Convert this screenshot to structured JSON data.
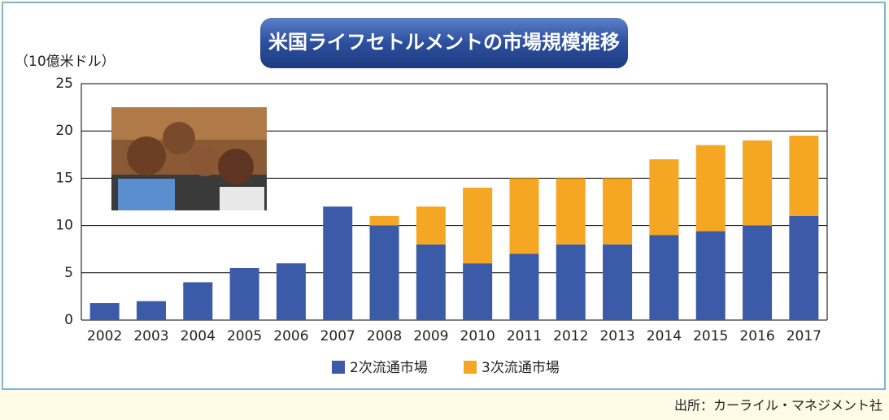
{
  "chart_data": {
    "type": "stacked_bar",
    "title": "米国ライフセトルメントの市場規模推移",
    "y_label": "（10億米ドル）",
    "source": "出所：カーライル・マネジメント社",
    "categories": [
      "2002",
      "2003",
      "2004",
      "2005",
      "2006",
      "2007",
      "2008",
      "2009",
      "2010",
      "2011",
      "2012",
      "2013",
      "2014",
      "2015",
      "2016",
      "2017"
    ],
    "series": [
      {
        "name": "2次流通市場",
        "color": "#3b5aa8",
        "values": [
          1.8,
          2,
          4,
          5.5,
          6,
          12,
          10,
          8,
          6,
          7,
          8,
          8,
          9,
          9.4,
          10,
          11
        ]
      },
      {
        "name": "3次流通市場",
        "color": "#f5a623",
        "values": [
          0,
          0,
          0,
          0,
          0,
          0,
          1,
          4,
          8,
          8,
          7,
          7,
          8,
          9.1,
          9,
          8.5
        ]
      }
    ],
    "ylim": [
      0,
      25
    ],
    "yticks": [
      0,
      5,
      10,
      15,
      20,
      25
    ],
    "grid": true
  }
}
